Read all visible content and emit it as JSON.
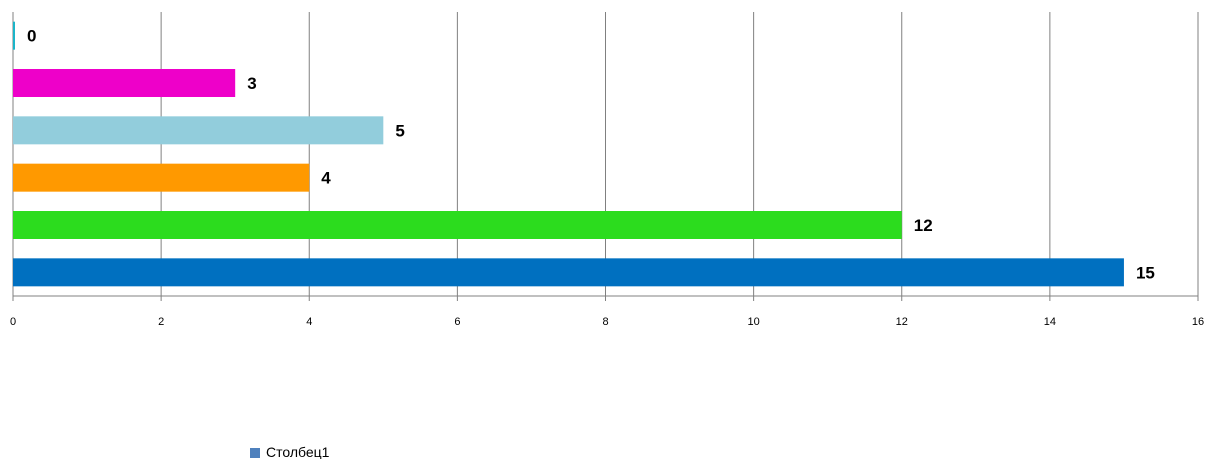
{
  "chart_data": {
    "type": "bar",
    "orientation": "horizontal",
    "title": "",
    "xlabel": "",
    "ylabel": "",
    "xlim": [
      0,
      16
    ],
    "x_ticks": [
      "0",
      "2",
      "4",
      "6",
      "8",
      "10",
      "12",
      "14",
      "16"
    ],
    "grid": true,
    "series": [
      {
        "name": "Столбец1",
        "values": [
          0,
          3,
          5,
          4,
          12,
          15
        ],
        "data_labels": [
          "0",
          "3",
          "5",
          "4",
          "12",
          "15"
        ],
        "colors": [
          "#1bb5c9",
          "#ee00c9",
          "#92cddc",
          "#ff9900",
          "#2cdc1e",
          "#0070c0"
        ]
      }
    ],
    "legend": {
      "position": "bottom-left",
      "marker_color": "#4f81bd",
      "entries": [
        "Столбец1"
      ]
    },
    "axis_line_color": "#808080",
    "grid_color": "#808080"
  }
}
